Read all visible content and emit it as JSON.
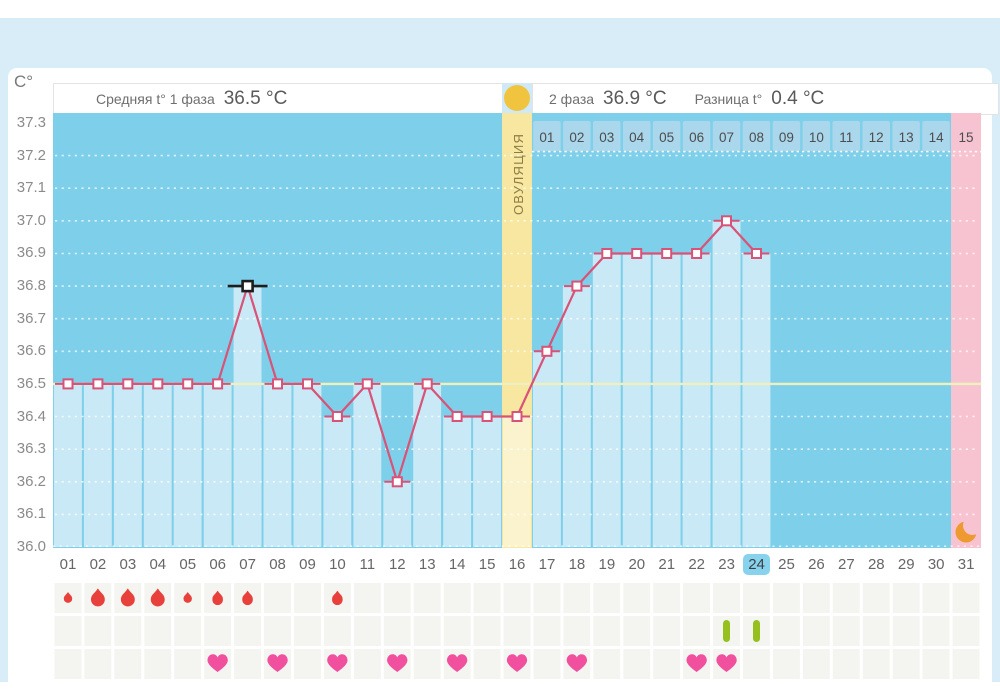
{
  "header": {
    "unit_label": "C°",
    "phase1_label": "Средняя t° 1 фаза",
    "phase1_value": "36.5 °C",
    "phase2_label": "2 фаза",
    "phase2_value": "36.9 °C",
    "diff_label": "Разница t°",
    "diff_value": "0.4 °C",
    "ovulation_icon": "sun-circle-icon"
  },
  "axis": {
    "y_labels": [
      "37.3",
      "37.2",
      "37.1",
      "37.0",
      "36.9",
      "36.8",
      "36.7",
      "36.6",
      "36.5",
      "36.4",
      "36.3",
      "36.2",
      "36.1",
      "36.0"
    ],
    "x_labels": [
      "01",
      "02",
      "03",
      "04",
      "05",
      "06",
      "07",
      "08",
      "09",
      "10",
      "11",
      "12",
      "13",
      "14",
      "15",
      "16",
      "17",
      "18",
      "19",
      "20",
      "21",
      "22",
      "23",
      "24",
      "25",
      "26",
      "27",
      "28",
      "29",
      "30",
      "31"
    ],
    "current_day": 24
  },
  "chart_data": {
    "type": "line",
    "x": [
      1,
      2,
      3,
      4,
      5,
      6,
      7,
      8,
      9,
      10,
      11,
      12,
      13,
      14,
      15,
      16,
      17,
      18,
      19,
      20,
      21,
      22,
      23,
      24,
      25,
      26,
      27,
      28,
      29,
      30,
      31
    ],
    "series": [
      {
        "name": "temperature",
        "values": [
          36.5,
          36.5,
          36.5,
          36.5,
          36.5,
          36.5,
          36.8,
          36.5,
          36.5,
          36.4,
          36.5,
          36.2,
          36.5,
          36.4,
          36.4,
          36.4,
          36.6,
          36.8,
          36.9,
          36.9,
          36.9,
          36.9,
          37.0,
          36.9,
          null,
          null,
          null,
          null,
          null,
          null,
          null
        ]
      }
    ],
    "ylim": [
      36.0,
      37.3
    ],
    "ytick_step": 0.1,
    "grid": true,
    "coverline": 36.5,
    "selected_day": 7,
    "selected_value": 36.8,
    "phase1_avg": 36.5,
    "phase2_avg": 36.9,
    "phase_diff": 0.4,
    "ovulation": {
      "day": 16,
      "label": "ОВУЛЯЦИЯ"
    },
    "phase2_day_labels": [
      "01",
      "02",
      "03",
      "04",
      "05",
      "06",
      "07",
      "08",
      "09",
      "10",
      "11",
      "12",
      "13",
      "14",
      "15"
    ],
    "period_band_day": 31,
    "moon_icon_day": 31,
    "colors": {
      "plot_bg": "#7ecfe9",
      "bar_fill": "#c9e9f6",
      "line": "#d95277",
      "marker_fill": "#ffffff",
      "selected_marker": "#1d1d1d",
      "coverline": "#eef0bd",
      "ovulation_band": "#f7e7a1",
      "ovulation_band_light": "#fbf3cd",
      "ovulation_text": "#8c7d45",
      "period_band": "#f8c3d1",
      "day_cell": "#aad7eb",
      "day_cell_period": "#f5c3d1",
      "day_cell_text": "#4d4d4d",
      "current_day_bg": "#87d3ee",
      "sun": "#f1c440",
      "moon": "#ee9a30"
    }
  },
  "symbols": {
    "menstruation": {
      "icon": "blood-drop-icon",
      "color": "#e8403a",
      "entries": [
        {
          "day": 1,
          "size": "small"
        },
        {
          "day": 2,
          "size": "large"
        },
        {
          "day": 3,
          "size": "large"
        },
        {
          "day": 4,
          "size": "large"
        },
        {
          "day": 5,
          "size": "small"
        },
        {
          "day": 6,
          "size": "medium"
        },
        {
          "day": 7,
          "size": "medium"
        },
        {
          "day": 10,
          "size": "medium"
        }
      ]
    },
    "medication": {
      "icon": "pill-mark-icon",
      "color": "#95c01d",
      "days": [
        23,
        24
      ]
    },
    "intimacy": {
      "icon": "heart-icon",
      "color": "#f0509e",
      "days": [
        6,
        8,
        10,
        12,
        14,
        16,
        18,
        22,
        23
      ]
    }
  }
}
